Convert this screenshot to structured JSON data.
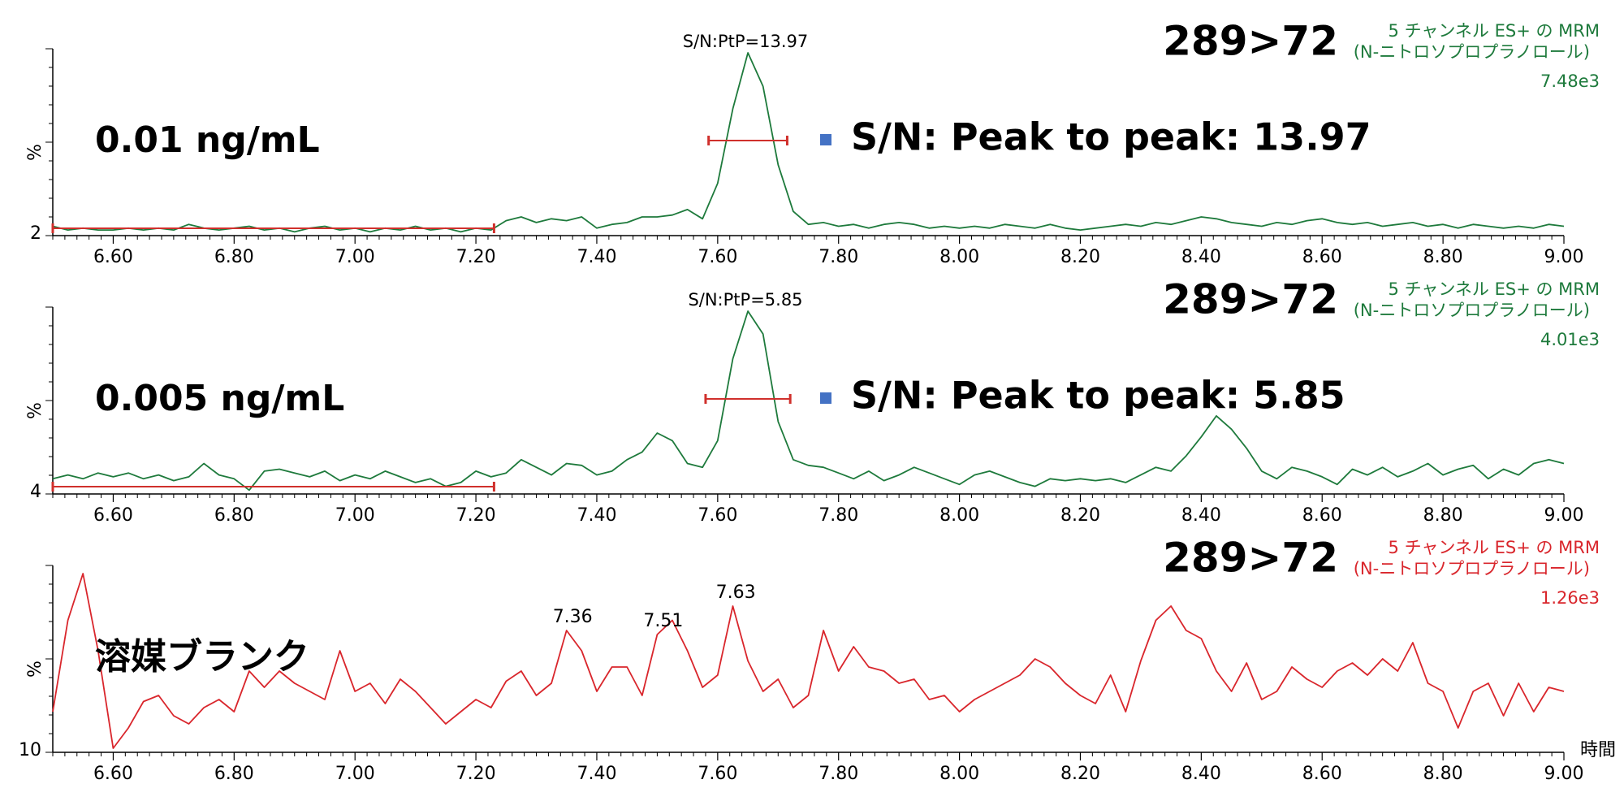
{
  "chart_data": [
    {
      "type": "line",
      "title": "0.01 ng/mL",
      "transition": "289>72",
      "channel": "5 チャンネル ES+ の MRM",
      "compound": "(N-ニトロソプロプラノロール)",
      "intensity": "7.48e3",
      "peak_annotation": "S/N:PtP=13.97",
      "sn_text": "S/N: Peak to peak: 13.97",
      "ylabel": "%",
      "color": "#1e7a3c",
      "xlim": [
        6.5,
        9.0
      ],
      "xticks": [
        {
          "value": 6.6,
          "label": "6.60"
        },
        {
          "value": 6.8,
          "label": "6.80"
        },
        {
          "value": 7.0,
          "label": "7.00"
        },
        {
          "value": 7.2,
          "label": "7.20"
        },
        {
          "value": 7.4,
          "label": "7.40"
        },
        {
          "value": 7.6,
          "label": "7.60"
        },
        {
          "value": 7.8,
          "label": "7.80"
        },
        {
          "value": 8.0,
          "label": "8.00"
        },
        {
          "value": 8.2,
          "label": "8.20"
        },
        {
          "value": 8.4,
          "label": "8.40"
        },
        {
          "value": 8.6,
          "label": "8.60"
        },
        {
          "value": 8.8,
          "label": "8.80"
        },
        {
          "value": 9.0,
          "label": "9.00"
        }
      ],
      "ylim": [
        2,
        100
      ],
      "yticks": [
        2
      ],
      "noise_range": [
        6.5,
        7.23
      ],
      "peak_range": [
        7.585,
        7.715
      ],
      "x": [
        6.5,
        6.525,
        6.55,
        6.575,
        6.6,
        6.625,
        6.65,
        6.675,
        6.7,
        6.725,
        6.75,
        6.775,
        6.8,
        6.825,
        6.85,
        6.875,
        6.9,
        6.925,
        6.95,
        6.975,
        7.0,
        7.025,
        7.05,
        7.075,
        7.1,
        7.125,
        7.15,
        7.175,
        7.2,
        7.225,
        7.25,
        7.275,
        7.3,
        7.325,
        7.35,
        7.375,
        7.4,
        7.425,
        7.45,
        7.475,
        7.5,
        7.525,
        7.55,
        7.575,
        7.6,
        7.625,
        7.65,
        7.675,
        7.7,
        7.725,
        7.75,
        7.775,
        7.8,
        7.825,
        7.85,
        7.875,
        7.9,
        7.925,
        7.95,
        7.975,
        8.0,
        8.025,
        8.05,
        8.075,
        8.1,
        8.125,
        8.15,
        8.175,
        8.2,
        8.225,
        8.25,
        8.275,
        8.3,
        8.325,
        8.35,
        8.375,
        8.4,
        8.425,
        8.45,
        8.475,
        8.5,
        8.525,
        8.55,
        8.575,
        8.6,
        8.625,
        8.65,
        8.675,
        8.7,
        8.725,
        8.75,
        8.775,
        8.8,
        8.825,
        8.85,
        8.875,
        8.9,
        8.925,
        8.95,
        8.975,
        9.0
      ],
      "values": [
        7,
        5,
        6,
        5,
        5,
        6,
        5,
        6,
        5,
        8,
        6,
        5,
        6,
        7,
        5,
        6,
        4,
        6,
        7,
        5,
        6,
        4,
        6,
        5,
        7,
        5,
        6,
        4,
        6,
        5,
        10,
        12,
        9,
        11,
        10,
        12,
        6,
        8,
        9,
        12,
        12,
        13,
        16,
        11,
        30,
        70,
        100,
        82,
        40,
        15,
        8,
        9,
        7,
        8,
        6,
        8,
        9,
        8,
        6,
        7,
        6,
        7,
        6,
        8,
        7,
        6,
        8,
        6,
        5,
        6,
        7,
        8,
        7,
        9,
        8,
        10,
        12,
        11,
        9,
        8,
        7,
        9,
        8,
        10,
        11,
        9,
        8,
        9,
        7,
        8,
        9,
        7,
        8,
        6,
        8,
        7,
        6,
        7,
        6,
        8,
        7
      ]
    },
    {
      "type": "line",
      "title": "0.005 ng/mL",
      "transition": "289>72",
      "channel": "5 チャンネル ES+ の MRM",
      "compound": "(N-ニトロソプロプラノロール)",
      "intensity": "4.01e3",
      "peak_annotation": "S/N:PtP=5.85",
      "sn_text": "S/N: Peak to peak: 5.85",
      "ylabel": "%",
      "color": "#1e7a3c",
      "xlim": [
        6.5,
        9.0
      ],
      "xticks": [
        {
          "value": 6.6,
          "label": "6.60"
        },
        {
          "value": 6.8,
          "label": "6.80"
        },
        {
          "value": 7.0,
          "label": "7.00"
        },
        {
          "value": 7.2,
          "label": "7.20"
        },
        {
          "value": 7.4,
          "label": "7.40"
        },
        {
          "value": 7.6,
          "label": "7.60"
        },
        {
          "value": 7.8,
          "label": "7.80"
        },
        {
          "value": 8.0,
          "label": "8.00"
        },
        {
          "value": 8.2,
          "label": "8.20"
        },
        {
          "value": 8.4,
          "label": "8.40"
        },
        {
          "value": 8.6,
          "label": "8.60"
        },
        {
          "value": 8.8,
          "label": "8.80"
        },
        {
          "value": 9.0,
          "label": "9.00"
        }
      ],
      "ylim": [
        4,
        100
      ],
      "yticks": [
        4
      ],
      "noise_range": [
        6.5,
        7.23
      ],
      "peak_range": [
        7.58,
        7.72
      ],
      "x": [
        6.5,
        6.525,
        6.55,
        6.575,
        6.6,
        6.625,
        6.65,
        6.675,
        6.7,
        6.725,
        6.75,
        6.775,
        6.8,
        6.825,
        6.85,
        6.875,
        6.9,
        6.925,
        6.95,
        6.975,
        7.0,
        7.025,
        7.05,
        7.075,
        7.1,
        7.125,
        7.15,
        7.175,
        7.2,
        7.225,
        7.25,
        7.275,
        7.3,
        7.325,
        7.35,
        7.375,
        7.4,
        7.425,
        7.45,
        7.475,
        7.5,
        7.525,
        7.55,
        7.575,
        7.6,
        7.625,
        7.65,
        7.675,
        7.7,
        7.725,
        7.75,
        7.775,
        7.8,
        7.825,
        7.85,
        7.875,
        7.9,
        7.925,
        7.95,
        7.975,
        8.0,
        8.025,
        8.05,
        8.075,
        8.1,
        8.125,
        8.15,
        8.175,
        8.2,
        8.225,
        8.25,
        8.275,
        8.3,
        8.325,
        8.35,
        8.375,
        8.4,
        8.425,
        8.45,
        8.475,
        8.5,
        8.525,
        8.55,
        8.575,
        8.6,
        8.625,
        8.65,
        8.675,
        8.7,
        8.725,
        8.75,
        8.775,
        8.8,
        8.825,
        8.85,
        8.875,
        8.9,
        8.925,
        8.95,
        8.975,
        9.0
      ],
      "values": [
        12,
        14,
        12,
        15,
        13,
        15,
        12,
        14,
        11,
        13,
        20,
        14,
        12,
        6,
        16,
        17,
        15,
        13,
        16,
        11,
        14,
        12,
        16,
        13,
        10,
        12,
        8,
        10,
        16,
        13,
        15,
        22,
        18,
        14,
        20,
        19,
        14,
        16,
        22,
        26,
        36,
        32,
        20,
        18,
        32,
        75,
        100,
        88,
        42,
        22,
        19,
        18,
        15,
        12,
        16,
        11,
        14,
        18,
        15,
        12,
        9,
        14,
        16,
        13,
        10,
        8,
        12,
        11,
        12,
        11,
        12,
        10,
        14,
        18,
        16,
        24,
        34,
        45,
        38,
        28,
        16,
        12,
        18,
        16,
        13,
        9,
        17,
        14,
        18,
        13,
        16,
        20,
        14,
        17,
        19,
        12,
        17,
        14,
        20,
        22,
        20
      ]
    },
    {
      "type": "line",
      "title": "溶媒ブランク",
      "transition": "289>72",
      "channel": "5 チャンネル ES+ の MRM",
      "compound": "(N-ニトロソプロプラノロール)",
      "intensity": "1.26e3",
      "ylabel": "%",
      "xlabel": "時間",
      "color": "#d9262c",
      "xlim": [
        6.5,
        9.0
      ],
      "xticks": [
        {
          "value": 6.6,
          "label": "6.60"
        },
        {
          "value": 6.8,
          "label": "6.80"
        },
        {
          "value": 7.0,
          "label": "7.00"
        },
        {
          "value": 7.2,
          "label": "7.20"
        },
        {
          "value": 7.4,
          "label": "7.40"
        },
        {
          "value": 7.6,
          "label": "7.60"
        },
        {
          "value": 7.8,
          "label": "7.80"
        },
        {
          "value": 8.0,
          "label": "8.00"
        },
        {
          "value": 8.2,
          "label": "8.20"
        },
        {
          "value": 8.4,
          "label": "8.40"
        },
        {
          "value": 8.6,
          "label": "8.60"
        },
        {
          "value": 8.8,
          "label": "8.80"
        },
        {
          "value": 9.0,
          "label": "9.00"
        }
      ],
      "ylim": [
        10,
        100
      ],
      "yticks": [
        10
      ],
      "peak_labels": [
        7.36,
        7.51,
        7.63
      ],
      "x": [
        6.5,
        6.525,
        6.55,
        6.575,
        6.6,
        6.625,
        6.65,
        6.675,
        6.7,
        6.725,
        6.75,
        6.775,
        6.8,
        6.825,
        6.85,
        6.875,
        6.9,
        6.925,
        6.95,
        6.975,
        7.0,
        7.025,
        7.05,
        7.075,
        7.1,
        7.125,
        7.15,
        7.175,
        7.2,
        7.225,
        7.25,
        7.275,
        7.3,
        7.325,
        7.35,
        7.375,
        7.4,
        7.425,
        7.45,
        7.475,
        7.5,
        7.525,
        7.55,
        7.575,
        7.6,
        7.625,
        7.65,
        7.675,
        7.7,
        7.725,
        7.75,
        7.775,
        7.8,
        7.825,
        7.85,
        7.875,
        7.9,
        7.925,
        7.95,
        7.975,
        8.0,
        8.025,
        8.05,
        8.075,
        8.1,
        8.125,
        8.15,
        8.175,
        8.2,
        8.225,
        8.25,
        8.275,
        8.3,
        8.325,
        8.35,
        8.375,
        8.4,
        8.425,
        8.45,
        8.475,
        8.5,
        8.525,
        8.55,
        8.575,
        8.6,
        8.625,
        8.65,
        8.675,
        8.7,
        8.725,
        8.75,
        8.775,
        8.8,
        8.825,
        8.85,
        8.875,
        8.9,
        8.925,
        8.95,
        8.975,
        9.0
      ],
      "values": [
        30,
        75,
        98,
        60,
        12,
        22,
        35,
        38,
        28,
        24,
        32,
        36,
        30,
        50,
        42,
        50,
        44,
        40,
        36,
        60,
        40,
        44,
        34,
        46,
        40,
        32,
        24,
        30,
        36,
        32,
        45,
        50,
        38,
        44,
        70,
        60,
        40,
        52,
        52,
        38,
        68,
        75,
        60,
        42,
        48,
        82,
        55,
        40,
        46,
        32,
        38,
        70,
        50,
        62,
        52,
        50,
        44,
        46,
        36,
        38,
        30,
        36,
        40,
        44,
        48,
        56,
        52,
        44,
        38,
        34,
        48,
        30,
        55,
        75,
        82,
        70,
        66,
        50,
        40,
        54,
        36,
        40,
        52,
        46,
        42,
        50,
        54,
        48,
        56,
        50,
        64,
        44,
        40,
        22,
        40,
        44,
        28,
        44,
        30,
        42,
        40
      ]
    }
  ]
}
